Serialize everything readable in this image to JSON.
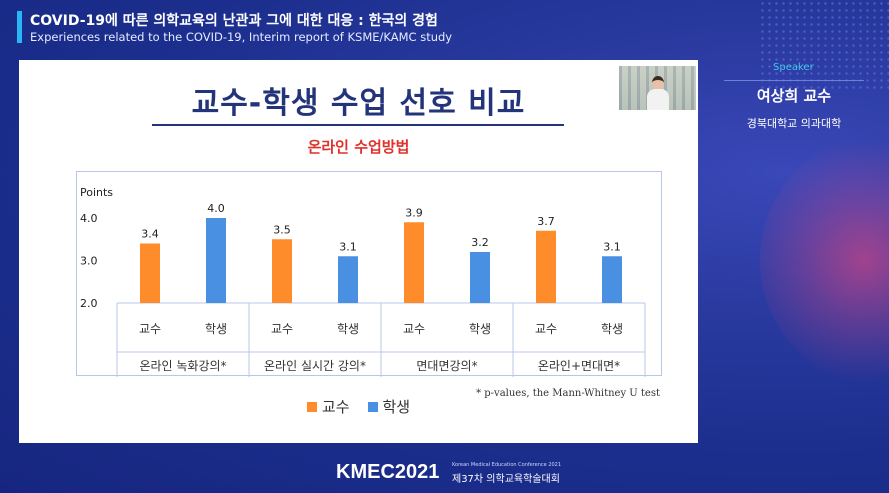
{
  "header": {
    "title_ko": "COVID-19에 따른 의학교육의 난관과 그에 대한 대응 : 한국의 경험",
    "title_en": "Experiences related to the COVID-19, Interim report of KSME/KAMC study"
  },
  "slide": {
    "title": "교수-학생 수업 선호 비교",
    "subtitle": "온라인 수업방법",
    "footnote": "* p-values, the Mann-Whitney U test"
  },
  "chart_data": {
    "type": "bar",
    "ylabel": "Points",
    "ylim": [
      2.0,
      4.0
    ],
    "yticks": [
      "2.0",
      "3.0",
      "4.0"
    ],
    "categories": [
      "온라인 녹화강의*",
      "온라인 실시간 강의*",
      "면대면강의*",
      "온라인+면대면*"
    ],
    "sublabels": [
      "교수",
      "학생"
    ],
    "series": [
      {
        "name": "교수",
        "color": "#ff8c2b",
        "values": [
          3.4,
          3.5,
          3.9,
          3.7
        ]
      },
      {
        "name": "학생",
        "color": "#4a90e2",
        "values": [
          4.0,
          3.1,
          3.2,
          3.1
        ]
      }
    ],
    "grid": false,
    "legend": "bottom-center"
  },
  "speaker": {
    "label": "Speaker",
    "name": "여상희 교수",
    "affiliation": "경북대학교 의과대학"
  },
  "footer": {
    "brand": "KMEC2021",
    "conf_en": "Korean Medical Education Conference 2021",
    "conf_ko": "제37차 의학교육학술대회"
  }
}
